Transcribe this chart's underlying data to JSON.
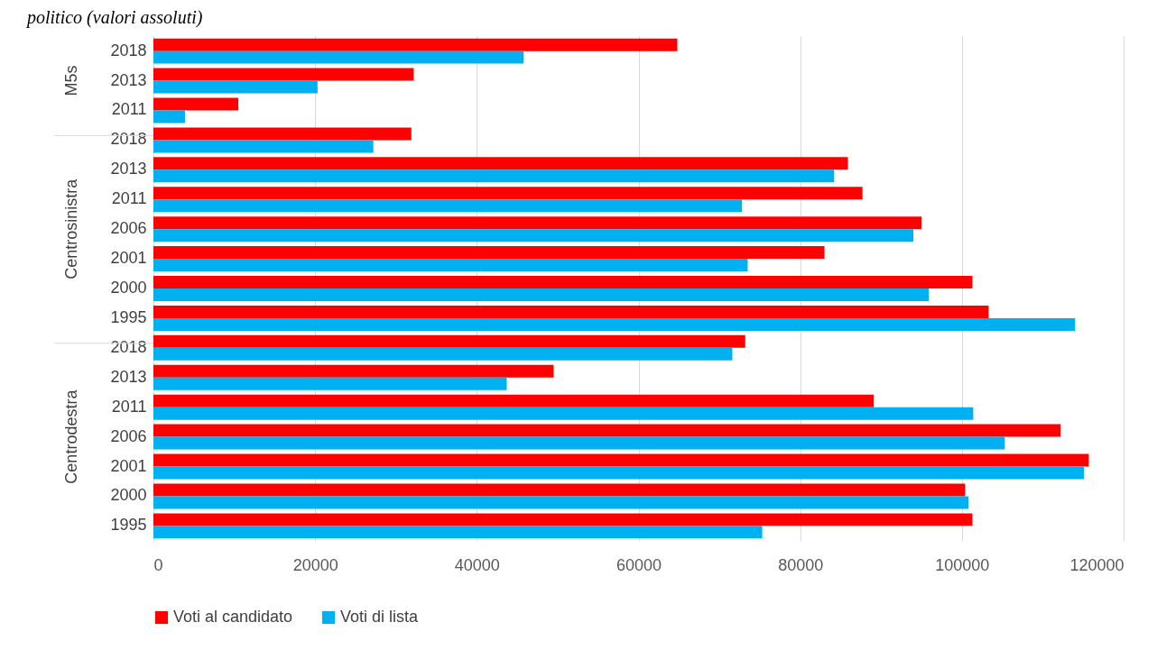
{
  "chart_data": {
    "type": "bar",
    "orientation": "horizontal",
    "title": "politico (valori assoluti)",
    "categories": [
      "2018",
      "2013",
      "2011",
      "2018",
      "2013",
      "2011",
      "2006",
      "2001",
      "2000",
      "1995",
      "2018",
      "2013",
      "2011",
      "2006",
      "2001",
      "2000",
      "1995"
    ],
    "annotations": [
      "M5s",
      "Centrosinistra",
      "Centrodestra"
    ],
    "series": [
      {
        "name": "Voti al candidato",
        "color": "#ff0000",
        "values": [
          64800,
          32200,
          10500,
          31900,
          85900,
          87700,
          95000,
          83000,
          101300,
          103300,
          73200,
          49500,
          89100,
          112200,
          115700,
          100400,
          101300
        ]
      },
      {
        "name": "Voti di lista",
        "color": "#00b0f0",
        "values": [
          45800,
          20300,
          3900,
          27200,
          84200,
          72800,
          94000,
          73500,
          95900,
          114000,
          71600,
          43700,
          101400,
          105300,
          115100,
          100800,
          75300
        ]
      }
    ],
    "xlim": [
      0,
      120000
    ],
    "xticks": [
      0,
      20000,
      40000,
      60000,
      80000,
      100000,
      120000
    ],
    "grid": "x",
    "legend": "bottom"
  }
}
